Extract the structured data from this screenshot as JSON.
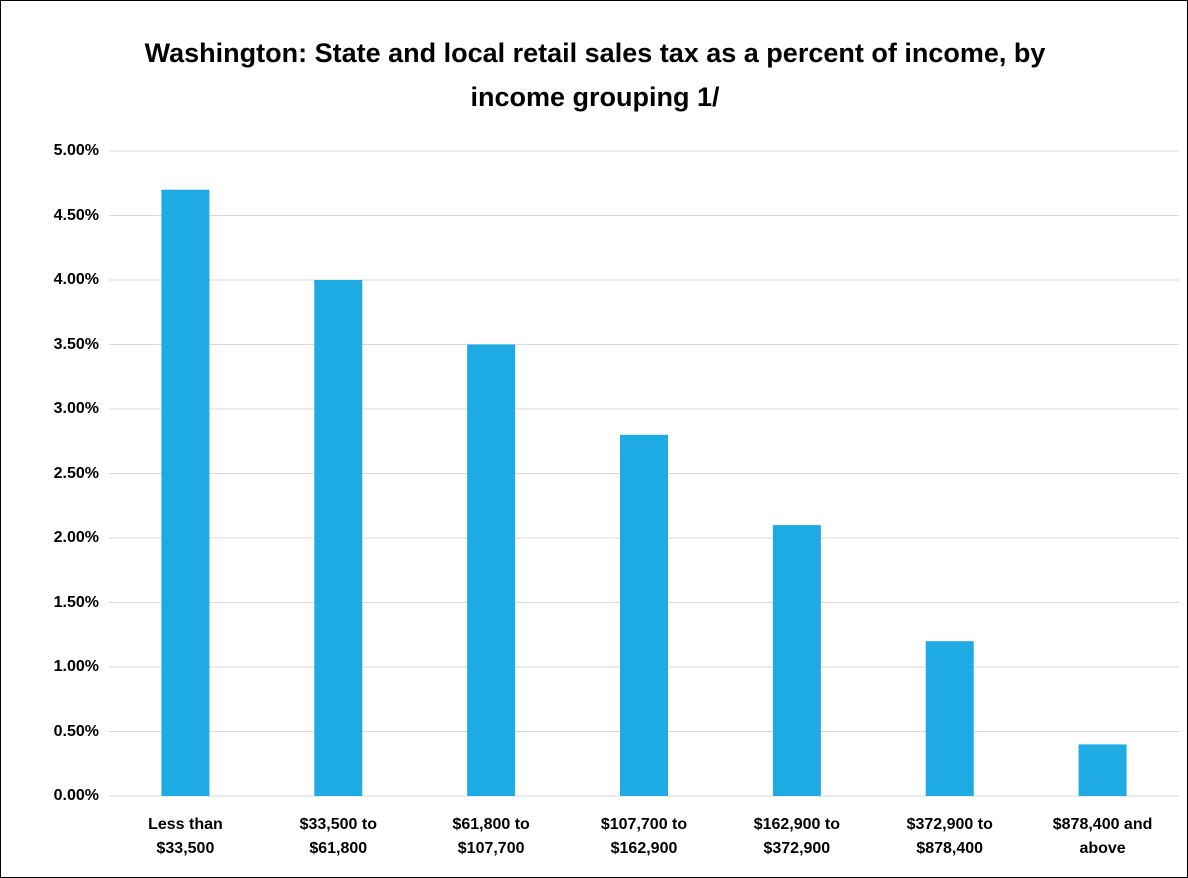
{
  "chart_data": {
    "type": "bar",
    "title": "Washington: State and local retail sales tax as a percent of income, by income grouping 1/",
    "categories": [
      "Less than $33,500",
      "$33,500 to $61,800",
      "$61,800 to $107,700",
      "$107,700 to $162,900",
      "$162,900 to $372,900",
      "$372,900 to $878,400",
      "$878,400 and above"
    ],
    "values": [
      4.7,
      4.0,
      3.5,
      2.8,
      2.1,
      1.2,
      0.4
    ],
    "color": "#1eabe3",
    "ylim": [
      0,
      5
    ],
    "yticks": [
      {
        "value": 0,
        "label": "0.00%"
      },
      {
        "value": 0.5,
        "label": "0.50%"
      },
      {
        "value": 1,
        "label": "1.00%"
      },
      {
        "value": 1.5,
        "label": "1.50%"
      },
      {
        "value": 2,
        "label": "2.00%"
      },
      {
        "value": 2.5,
        "label": "2.50%"
      },
      {
        "value": 3,
        "label": "3.00%"
      },
      {
        "value": 3.5,
        "label": "3.50%"
      },
      {
        "value": 4,
        "label": "4.00%"
      },
      {
        "value": 4.5,
        "label": "4.50%"
      },
      {
        "value": 5,
        "label": "5.00%"
      }
    ],
    "grid": true
  }
}
